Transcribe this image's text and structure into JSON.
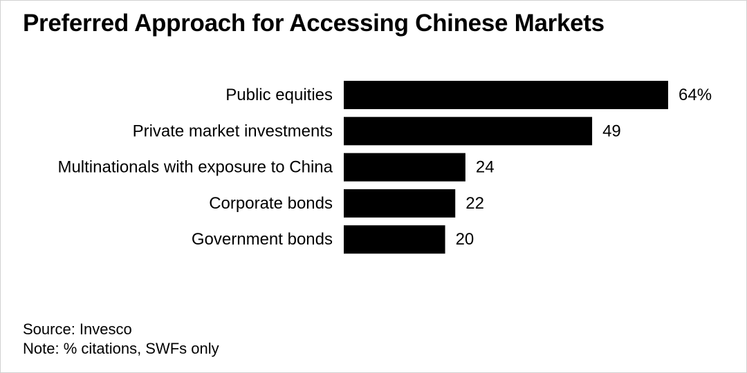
{
  "chart_data": {
    "type": "bar",
    "orientation": "horizontal",
    "title": "Preferred Approach for Accessing Chinese Markets",
    "categories": [
      "Public equities",
      "Private market investments",
      "Multinationals with exposure to China",
      "Corporate bonds",
      "Government bonds"
    ],
    "values": [
      64,
      49,
      24,
      22,
      20
    ],
    "value_labels": [
      "64%",
      "49",
      "24",
      "22",
      "20"
    ],
    "xlabel": "",
    "ylabel": "",
    "grid": false,
    "bar_color": "#000000"
  },
  "footer": {
    "source": "Source: Invesco",
    "note": "Note: % citations, SWFs only"
  }
}
